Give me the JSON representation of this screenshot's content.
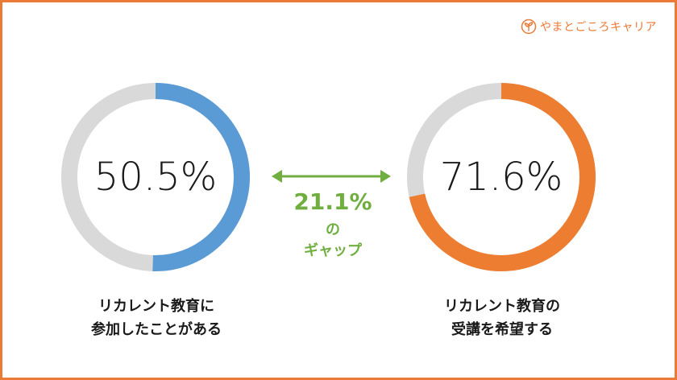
{
  "logo": {
    "text": "やまとごころキャリア",
    "icon": "sprout-icon",
    "color": "#ea7a35"
  },
  "chart_data": [
    {
      "type": "pie",
      "variant": "donut",
      "values": [
        50.5,
        49.5
      ],
      "data_label": "50.5%",
      "colors": [
        "#5b9bd5",
        "#d9d9d9"
      ],
      "caption": [
        "リカレント教育に",
        "参加したことがある"
      ]
    },
    {
      "type": "pie",
      "variant": "donut",
      "values": [
        71.6,
        28.4
      ],
      "data_label": "71.6%",
      "colors": [
        "#ed7d31",
        "#d9d9d9"
      ],
      "caption": [
        "リカレント教育の",
        "受講を希望する"
      ]
    }
  ],
  "gap": {
    "value": "21.1%",
    "line2": "の",
    "line3": "ギャップ",
    "color": "#6fae3f",
    "arrow": "double-arrow-icon"
  }
}
